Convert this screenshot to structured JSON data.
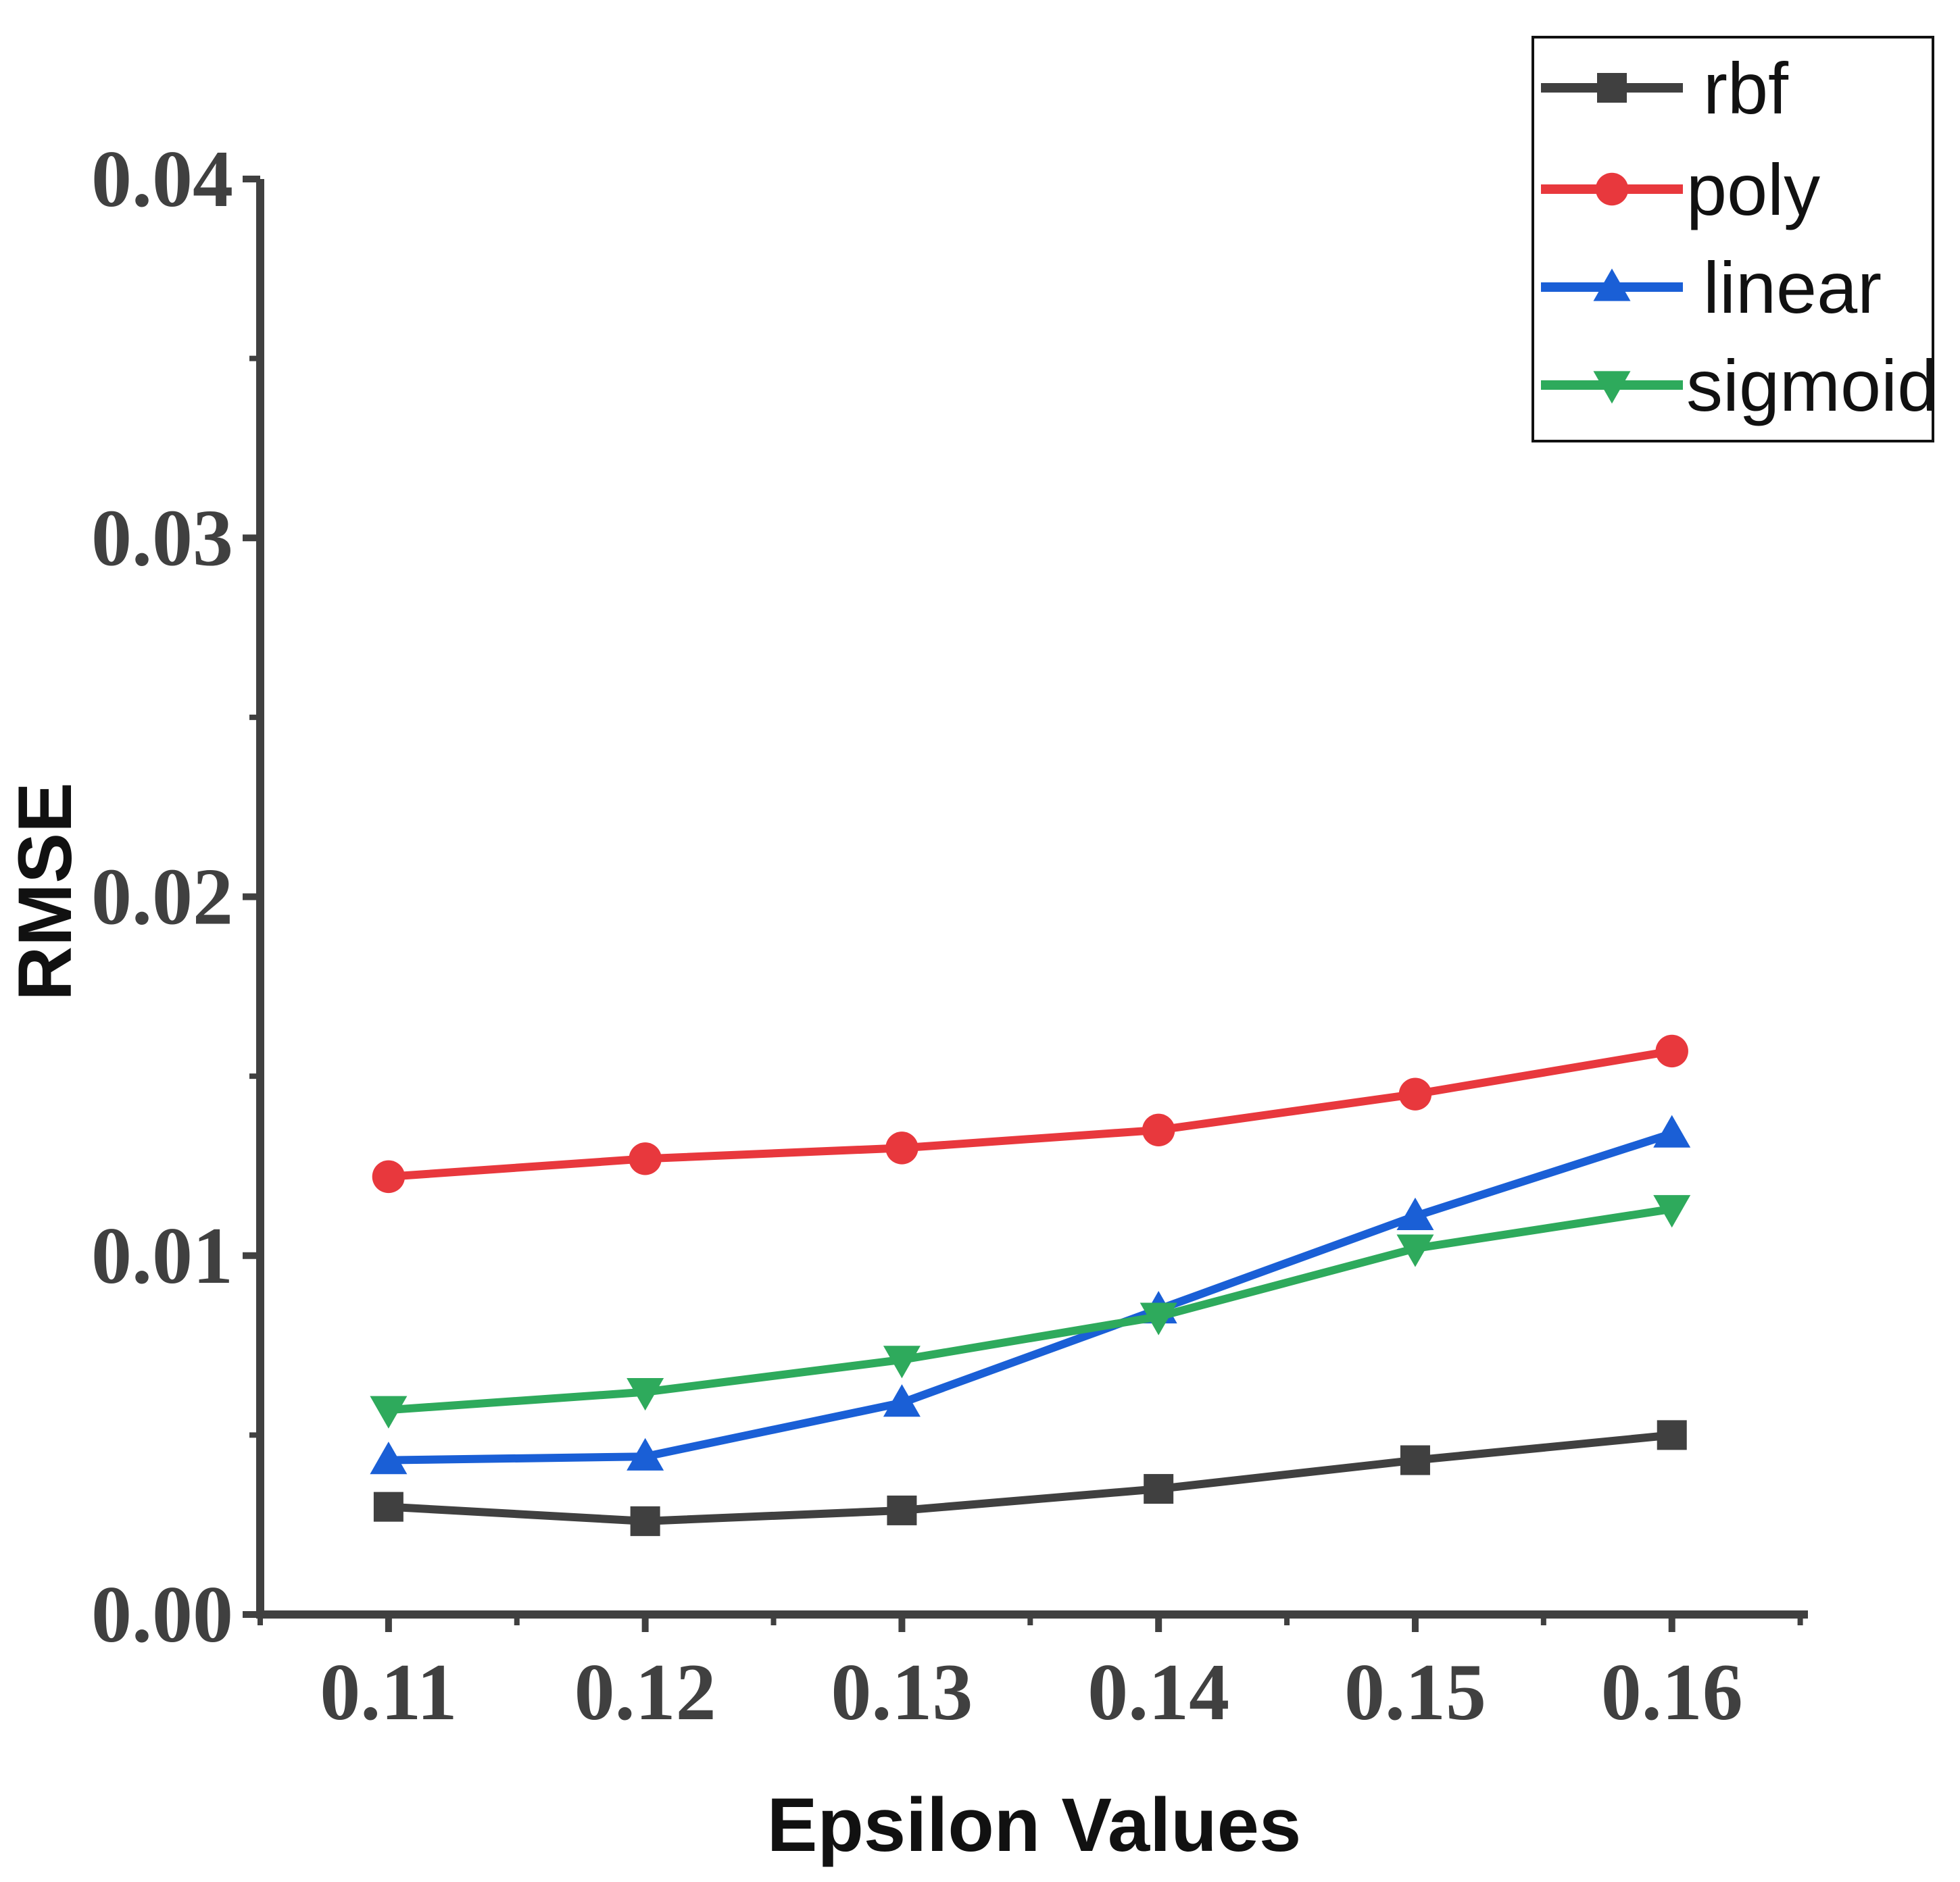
{
  "chart_data": {
    "type": "line",
    "title": "",
    "xlabel": "Epsilon Values",
    "ylabel": "RMSE",
    "x": [
      0.11,
      0.12,
      0.13,
      0.14,
      0.15,
      0.16
    ],
    "x_tick_labels": [
      "0.11",
      "0.12",
      "0.13",
      "0.14",
      "0.15",
      "0.16"
    ],
    "xlim": [
      0.105,
      0.1653
    ],
    "ylim": [
      0,
      0.04
    ],
    "y_tick_values": [
      0,
      0.01,
      0.02,
      0.03,
      0.04
    ],
    "y_tick_labels": [
      "0.00",
      "0.01",
      "0.02",
      "0.03",
      "0.04"
    ],
    "grid": false,
    "legend_position": "top-right",
    "series": [
      {
        "name": "rbf",
        "color": "#404040",
        "marker": "square",
        "values": [
          0.003,
          0.0026,
          0.0029,
          0.0035,
          0.0043,
          0.005
        ]
      },
      {
        "name": "poly",
        "color": "#e8383d",
        "marker": "circle",
        "values": [
          0.0122,
          0.0127,
          0.013,
          0.0135,
          0.0145,
          0.0157
        ]
      },
      {
        "name": "linear",
        "color": "#1a5fd6",
        "marker": "triangle-up",
        "values": [
          0.0043,
          0.0044,
          0.0059,
          0.0085,
          0.0111,
          0.0134
        ]
      },
      {
        "name": "sigmoid",
        "color": "#2eaa5c",
        "marker": "triangle-down",
        "values": [
          0.0057,
          0.0062,
          0.0071,
          0.0083,
          0.0102,
          0.0113
        ]
      }
    ]
  }
}
